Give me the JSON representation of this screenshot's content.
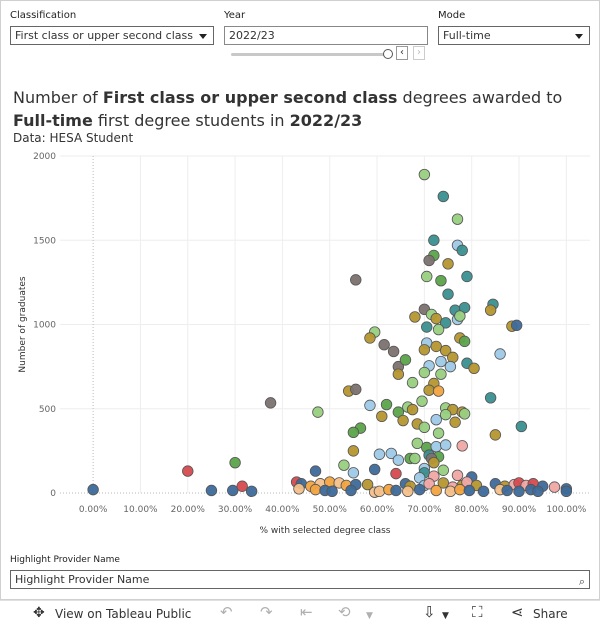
{
  "controls": {
    "classification_label": "Classification",
    "classification_value": "First class or upper second class",
    "year_label": "Year",
    "year_value": "2022/23",
    "year_prev": "‹",
    "year_next": "›",
    "mode_label": "Mode",
    "mode_value": "Full-time"
  },
  "header": {
    "title_p1": "Number of ",
    "title_b1": "First class or upper second class",
    "title_p2": " degrees awarded to ",
    "title_b2": "Full-time",
    "title_p3": " first degree students in ",
    "title_b3": "2022/23",
    "subtitle": "Data: HESA Student"
  },
  "highlight": {
    "label": "Highlight Provider Name",
    "placeholder": "Highlight Provider Name",
    "search_icon": "⌕"
  },
  "toolbar": {
    "view_label": "View on Tableau Public",
    "share_label": "Share",
    "view_icon": "✥",
    "undo_icon": "↶",
    "redo_icon": "↷",
    "revert_icon": "⇤",
    "refresh_icon": "⟲",
    "download_icon": "⇩",
    "fullscreen_icon": "⛶",
    "share_icon": "⋖"
  },
  "colors": {
    "dark_blue": "#3d6a9a",
    "teal": "#3a8f8f",
    "light_blue": "#9ec9e8",
    "green": "#5ba34a",
    "light_green": "#98d07f",
    "olive": "#b6962f",
    "orange": "#f2a340",
    "peach": "#f4c08a",
    "red": "#d64a4e",
    "pink": "#f0a7a4",
    "gray": "#7b7270"
  },
  "chart_data": {
    "type": "scatter",
    "xlabel": "% with selected degree class",
    "ylabel": "Number of graduates",
    "xlim": [
      -0.07,
      1.05
    ],
    "ylim": [
      0,
      2000
    ],
    "x_ticks": [
      0,
      0.1,
      0.2,
      0.3,
      0.4,
      0.5,
      0.6,
      0.7,
      0.8,
      0.9,
      1.0
    ],
    "x_tick_labels": [
      "0.00%",
      "10.00%",
      "20.00%",
      "30.00%",
      "40.00%",
      "50.00%",
      "60.00%",
      "70.00%",
      "80.00%",
      "90.00%",
      "100.00%"
    ],
    "y_ticks": [
      0,
      500,
      1000,
      1500,
      2000
    ],
    "y_tick_labels": [
      "0",
      "500",
      "1000",
      "1500",
      "2000"
    ],
    "reference_line_x": 0,
    "points": [
      [
        0.7,
        1890,
        "light_green"
      ],
      [
        0.74,
        1760,
        "teal"
      ],
      [
        0.77,
        1625,
        "light_green"
      ],
      [
        0.72,
        1500,
        "teal"
      ],
      [
        0.77,
        1470,
        "light_blue"
      ],
      [
        0.78,
        1440,
        "teal"
      ],
      [
        0.72,
        1410,
        "green"
      ],
      [
        0.71,
        1380,
        "gray"
      ],
      [
        0.75,
        1360,
        "olive"
      ],
      [
        0.79,
        1285,
        "teal"
      ],
      [
        0.555,
        1265,
        "gray"
      ],
      [
        0.705,
        1285,
        "light_green"
      ],
      [
        0.735,
        1260,
        "green"
      ],
      [
        0.75,
        1180,
        "teal"
      ],
      [
        0.845,
        1120,
        "teal"
      ],
      [
        0.7,
        1090,
        "gray"
      ],
      [
        0.715,
        1060,
        "light_green"
      ],
      [
        0.765,
        1085,
        "teal"
      ],
      [
        0.785,
        1100,
        "teal"
      ],
      [
        0.68,
        1045,
        "olive"
      ],
      [
        0.725,
        1035,
        "olive"
      ],
      [
        0.77,
        1030,
        "light_blue"
      ],
      [
        0.745,
        1010,
        "teal"
      ],
      [
        0.775,
        1050,
        "light_green"
      ],
      [
        0.84,
        1085,
        "olive"
      ],
      [
        0.885,
        990,
        "olive"
      ],
      [
        0.895,
        995,
        "dark_blue"
      ],
      [
        0.595,
        955,
        "light_green"
      ],
      [
        0.585,
        920,
        "olive"
      ],
      [
        0.705,
        985,
        "teal"
      ],
      [
        0.73,
        970,
        "light_green"
      ],
      [
        0.775,
        920,
        "olive"
      ],
      [
        0.705,
        890,
        "light_blue"
      ],
      [
        0.785,
        900,
        "green"
      ],
      [
        0.615,
        880,
        "gray"
      ],
      [
        0.635,
        840,
        "gray"
      ],
      [
        0.645,
        750,
        "gray"
      ],
      [
        0.66,
        790,
        "green"
      ],
      [
        0.7,
        850,
        "olive"
      ],
      [
        0.725,
        870,
        "olive"
      ],
      [
        0.745,
        845,
        "olive"
      ],
      [
        0.76,
        805,
        "olive"
      ],
      [
        0.735,
        780,
        "light_blue"
      ],
      [
        0.71,
        755,
        "light_blue"
      ],
      [
        0.755,
        750,
        "light_blue"
      ],
      [
        0.79,
        770,
        "teal"
      ],
      [
        0.86,
        825,
        "light_blue"
      ],
      [
        0.805,
        740,
        "olive"
      ],
      [
        0.7,
        715,
        "light_green"
      ],
      [
        0.675,
        655,
        "light_green"
      ],
      [
        0.645,
        705,
        "olive"
      ],
      [
        0.735,
        705,
        "light_green"
      ],
      [
        0.72,
        650,
        "olive"
      ],
      [
        0.71,
        610,
        "olive"
      ],
      [
        0.73,
        605,
        "orange"
      ],
      [
        0.54,
        605,
        "olive"
      ],
      [
        0.555,
        615,
        "gray"
      ],
      [
        0.375,
        535,
        "gray"
      ],
      [
        0.585,
        520,
        "light_blue"
      ],
      [
        0.62,
        525,
        "green"
      ],
      [
        0.695,
        545,
        "light_green"
      ],
      [
        0.665,
        510,
        "light_green"
      ],
      [
        0.645,
        480,
        "green"
      ],
      [
        0.675,
        495,
        "olive"
      ],
      [
        0.745,
        505,
        "light_green"
      ],
      [
        0.76,
        495,
        "olive"
      ],
      [
        0.78,
        480,
        "olive"
      ],
      [
        0.84,
        565,
        "teal"
      ],
      [
        0.655,
        430,
        "olive"
      ],
      [
        0.685,
        410,
        "olive"
      ],
      [
        0.725,
        435,
        "light_blue"
      ],
      [
        0.745,
        465,
        "light_green"
      ],
      [
        0.765,
        420,
        "olive"
      ],
      [
        0.785,
        470,
        "light_green"
      ],
      [
        0.61,
        455,
        "olive"
      ],
      [
        0.475,
        480,
        "light_green"
      ],
      [
        0.565,
        385,
        "green"
      ],
      [
        0.55,
        360,
        "green"
      ],
      [
        0.7,
        390,
        "light_green"
      ],
      [
        0.73,
        355,
        "light_green"
      ],
      [
        0.905,
        395,
        "teal"
      ],
      [
        0.685,
        295,
        "light_green"
      ],
      [
        0.705,
        270,
        "green"
      ],
      [
        0.725,
        275,
        "light_blue"
      ],
      [
        0.745,
        285,
        "light_blue"
      ],
      [
        0.78,
        280,
        "pink"
      ],
      [
        0.85,
        345,
        "olive"
      ],
      [
        0.55,
        250,
        "olive"
      ],
      [
        0.605,
        230,
        "light_blue"
      ],
      [
        0.63,
        235,
        "light_blue"
      ],
      [
        0.645,
        195,
        "light_blue"
      ],
      [
        0.67,
        205,
        "green"
      ],
      [
        0.68,
        205,
        "light_green"
      ],
      [
        0.71,
        225,
        "teal"
      ],
      [
        0.73,
        215,
        "green"
      ],
      [
        0.715,
        205,
        "gray"
      ],
      [
        0.3,
        180,
        "green"
      ],
      [
        0.53,
        165,
        "light_green"
      ],
      [
        0.72,
        180,
        "olive"
      ],
      [
        0.7,
        145,
        "light_blue"
      ],
      [
        0.74,
        135,
        "light_green"
      ],
      [
        0.7,
        120,
        "teal"
      ],
      [
        0.64,
        115,
        "red"
      ],
      [
        0.2,
        130,
        "red"
      ],
      [
        0.47,
        130,
        "dark_blue"
      ],
      [
        0.55,
        120,
        "light_blue"
      ],
      [
        0.595,
        140,
        "dark_blue"
      ],
      [
        0.69,
        90,
        "light_blue"
      ],
      [
        0.72,
        100,
        "pink"
      ],
      [
        0.77,
        105,
        "pink"
      ],
      [
        0.8,
        95,
        "dark_blue"
      ],
      [
        0.43,
        65,
        "red"
      ],
      [
        0.44,
        55,
        "dark_blue"
      ],
      [
        0.46,
        40,
        "orange"
      ],
      [
        0.48,
        55,
        "peach"
      ],
      [
        0.5,
        65,
        "orange"
      ],
      [
        0.52,
        60,
        "peach"
      ],
      [
        0.535,
        45,
        "orange"
      ],
      [
        0.555,
        50,
        "dark_blue"
      ],
      [
        0.58,
        50,
        "olive"
      ],
      [
        0.66,
        55,
        "dark_blue"
      ],
      [
        0.67,
        40,
        "olive"
      ],
      [
        0.7,
        45,
        "light_blue"
      ],
      [
        0.71,
        55,
        "pink"
      ],
      [
        0.74,
        60,
        "olive"
      ],
      [
        0.76,
        35,
        "pink"
      ],
      [
        0.78,
        45,
        "olive"
      ],
      [
        0.79,
        65,
        "pink"
      ],
      [
        0.81,
        45,
        "olive"
      ],
      [
        0.85,
        55,
        "dark_blue"
      ],
      [
        0.87,
        40,
        "olive"
      ],
      [
        0.89,
        50,
        "pink"
      ],
      [
        0.9,
        60,
        "red"
      ],
      [
        0.915,
        45,
        "pink"
      ],
      [
        0.93,
        55,
        "red"
      ],
      [
        0.95,
        40,
        "dark_blue"
      ],
      [
        0.975,
        35,
        "pink"
      ],
      [
        0.0,
        20,
        "dark_blue"
      ],
      [
        0.25,
        15,
        "dark_blue"
      ],
      [
        0.295,
        15,
        "dark_blue"
      ],
      [
        0.315,
        40,
        "red"
      ],
      [
        0.335,
        10,
        "dark_blue"
      ],
      [
        0.435,
        25,
        "peach"
      ],
      [
        0.47,
        20,
        "orange"
      ],
      [
        0.49,
        15,
        "dark_blue"
      ],
      [
        0.505,
        10,
        "dark_blue"
      ],
      [
        0.545,
        15,
        "dark_blue"
      ],
      [
        0.595,
        5,
        "peach"
      ],
      [
        0.605,
        10,
        "peach"
      ],
      [
        0.625,
        20,
        "orange"
      ],
      [
        0.64,
        15,
        "dark_blue"
      ],
      [
        0.665,
        10,
        "peach"
      ],
      [
        0.69,
        20,
        "dark_blue"
      ],
      [
        0.725,
        15,
        "orange"
      ],
      [
        0.755,
        10,
        "peach"
      ],
      [
        0.775,
        20,
        "orange"
      ],
      [
        0.795,
        15,
        "dark_blue"
      ],
      [
        0.825,
        10,
        "dark_blue"
      ],
      [
        0.86,
        20,
        "peach"
      ],
      [
        0.875,
        15,
        "dark_blue"
      ],
      [
        0.9,
        10,
        "dark_blue"
      ],
      [
        0.925,
        20,
        "dark_blue"
      ],
      [
        0.94,
        10,
        "dark_blue"
      ],
      [
        1.0,
        25,
        "dark_blue"
      ],
      [
        1.0,
        10,
        "dark_blue"
      ]
    ]
  }
}
